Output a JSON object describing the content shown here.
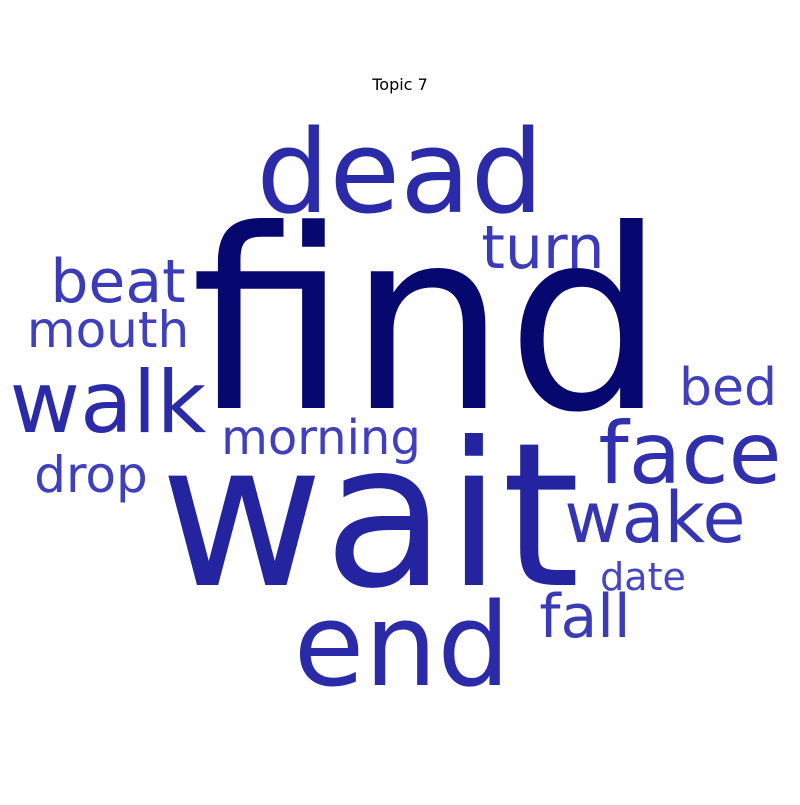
{
  "chart_data": {
    "type": "wordcloud",
    "title": "Topic 7",
    "words": [
      {
        "text": "find",
        "color": "#07086F"
      },
      {
        "text": "wait",
        "color": "#2424A0"
      },
      {
        "text": "dead",
        "color": "#2B2BAA"
      },
      {
        "text": "end",
        "color": "#2B2BAA"
      },
      {
        "text": "walk",
        "color": "#2B2BAA"
      },
      {
        "text": "face",
        "color": "#3030AF"
      },
      {
        "text": "wake",
        "color": "#3535B3"
      },
      {
        "text": "turn",
        "color": "#3B3BB8"
      },
      {
        "text": "beat",
        "color": "#3B3BB8"
      },
      {
        "text": "fall",
        "color": "#3B3BB8"
      },
      {
        "text": "bed",
        "color": "#4040BE"
      },
      {
        "text": "mouth",
        "color": "#4040BE"
      },
      {
        "text": "morning",
        "color": "#4040BE"
      },
      {
        "text": "drop",
        "color": "#4040BE"
      },
      {
        "text": "date",
        "color": "#4646C4"
      }
    ]
  }
}
